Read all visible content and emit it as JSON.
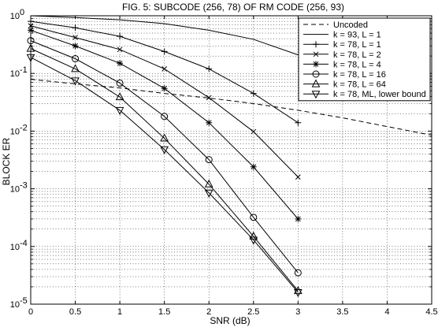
{
  "chart_data": {
    "type": "line",
    "title": "FIG. 5: SUBCODE (256, 78) OF RM CODE (256, 93)",
    "xlabel": "SNR (dB)",
    "ylabel": "BLOCK ER",
    "xlim": [
      0,
      4.5
    ],
    "ylim": [
      1e-05,
      1
    ],
    "yscale": "log",
    "grid": "dotted, major and minor",
    "legend_position": "top-right",
    "x_ticks": [
      "0",
      "0.5",
      "1",
      "1.5",
      "2",
      "2.5",
      "3",
      "3.5",
      "4",
      "4.5"
    ],
    "y_ticks": [
      {
        "base": "10",
        "exp": "0"
      },
      {
        "base": "10",
        "exp": "-1"
      },
      {
        "base": "10",
        "exp": "-2"
      },
      {
        "base": "10",
        "exp": "-3"
      },
      {
        "base": "10",
        "exp": "-4"
      },
      {
        "base": "10",
        "exp": "-5"
      }
    ],
    "series": [
      {
        "name": "Uncoded",
        "style": "dashed",
        "marker": "none",
        "x": [
          0,
          0.5,
          1,
          1.5,
          2,
          2.5,
          3,
          3.5,
          4,
          4.5
        ],
        "y": [
          0.079,
          0.066,
          0.056,
          0.045,
          0.0375,
          0.03,
          0.023,
          0.017,
          0.012,
          0.0085
        ]
      },
      {
        "name": "k = 93, L = 1",
        "style": "solid",
        "marker": "none",
        "x": [
          0,
          0.5,
          1,
          1.5,
          2,
          2.5,
          3
        ],
        "y": [
          1.0,
          0.93,
          0.85,
          0.73,
          0.56,
          0.39,
          0.21
        ]
      },
      {
        "name": "k = 78, L = 1",
        "style": "solid",
        "marker": "plus",
        "x": [
          0,
          0.5,
          1,
          1.5,
          2,
          2.5,
          3
        ],
        "y": [
          0.8,
          0.62,
          0.44,
          0.24,
          0.12,
          0.045,
          0.014
        ]
      },
      {
        "name": "k = 78, L = 2",
        "style": "solid",
        "marker": "x",
        "x": [
          0,
          0.5,
          1,
          1.5,
          2,
          2.5,
          3
        ],
        "y": [
          0.67,
          0.42,
          0.26,
          0.12,
          0.038,
          0.0098,
          0.0016
        ]
      },
      {
        "name": "k = 78, L = 4",
        "style": "solid",
        "marker": "star",
        "x": [
          0,
          0.5,
          1,
          1.5,
          2,
          2.5,
          3
        ],
        "y": [
          0.56,
          0.3,
          0.15,
          0.055,
          0.014,
          0.0024,
          0.0003
        ]
      },
      {
        "name": "k = 78, L = 16",
        "style": "solid",
        "marker": "circle",
        "x": [
          0,
          0.5,
          1,
          1.5,
          2,
          2.5,
          3
        ],
        "y": [
          0.37,
          0.18,
          0.068,
          0.018,
          0.0032,
          0.00032,
          3.5e-05
        ]
      },
      {
        "name": "k = 78, L = 64",
        "style": "solid",
        "marker": "triangle-up",
        "x": [
          0,
          0.5,
          1,
          1.5,
          2,
          2.5,
          3
        ],
        "y": [
          0.27,
          0.12,
          0.039,
          0.0075,
          0.0012,
          0.00015,
          1.7e-05
        ]
      },
      {
        "name": "k = 78, ML, lower bound",
        "style": "solid",
        "marker": "triangle-down",
        "x": [
          0,
          0.5,
          1,
          1.5,
          2,
          2.5,
          3
        ],
        "y": [
          0.19,
          0.075,
          0.023,
          0.0048,
          0.00085,
          0.00013,
          1.6e-05
        ]
      }
    ]
  }
}
